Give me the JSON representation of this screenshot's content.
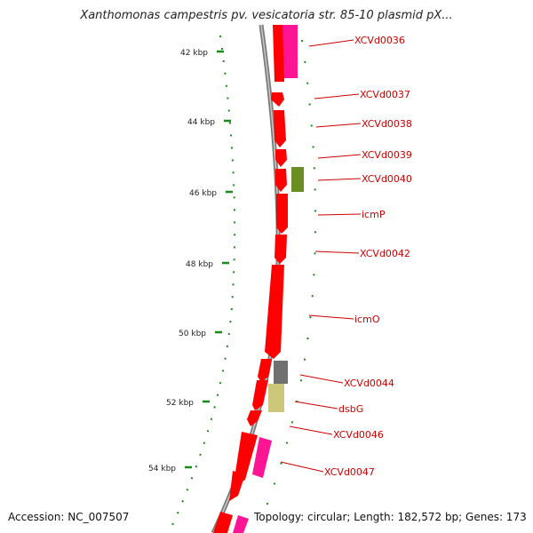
{
  "title": "Xanthomonas campestris pv. vesicatoria str. 85-10 plasmid pX...",
  "footer": {
    "accession": "Accession: NC_007507",
    "topology": "Topology: circular; Length: 182,572 bp; Genes: 173"
  },
  "colors": {
    "gene_red": "#ff0000",
    "gene_pink": "#ff1493",
    "gene_olive": "#6b8e23",
    "gene_gray": "#707070",
    "gene_khaki": "#cdc77b",
    "tick_green": "#1a8a1a",
    "label_red": "#cc0000",
    "backbone": "#808080"
  },
  "ticks": [
    "42 kbp",
    "44 kbp",
    "46 kbp",
    "48 kbp",
    "50 kbp",
    "52 kbp",
    "54 kbp"
  ],
  "genes": [
    {
      "label": "XCVd0036"
    },
    {
      "label": "XCVd0037"
    },
    {
      "label": "XCVd0038"
    },
    {
      "label": "XCVd0039"
    },
    {
      "label": "XCVd0040"
    },
    {
      "label": "icmP"
    },
    {
      "label": "XCVd0042"
    },
    {
      "label": "icmO"
    },
    {
      "label": "XCVd0044"
    },
    {
      "label": "dsbG"
    },
    {
      "label": "XCVd0046"
    },
    {
      "label": "XCVd0047"
    }
  ]
}
